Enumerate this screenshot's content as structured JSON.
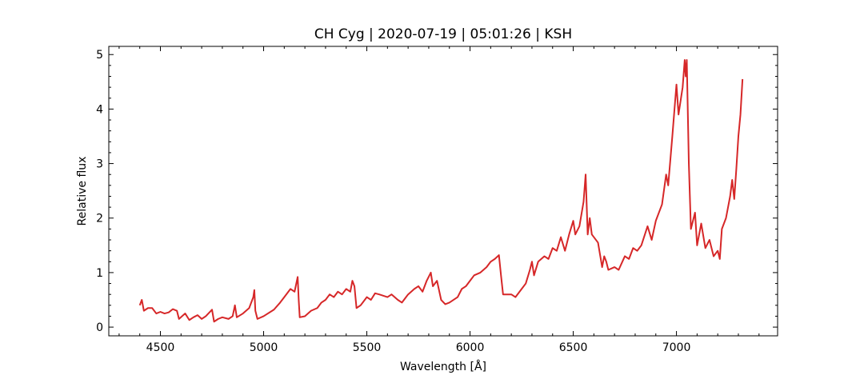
{
  "chart_data": {
    "type": "line",
    "title": "CH Cyg | 2020-07-19 | 05:01:26 | KSH",
    "x_label": "Wavelength [Å]",
    "y_label": "Relative flux",
    "xlim": [
      4250,
      7490
    ],
    "ylim": [
      -0.16,
      5.15
    ],
    "xticks": [
      4500,
      5000,
      5500,
      6000,
      6500,
      7000
    ],
    "yticks": [
      0,
      1,
      2,
      3,
      4,
      5
    ],
    "xminorticks": [
      4300,
      4400,
      4600,
      4700,
      4800,
      4900,
      5100,
      5200,
      5300,
      5400,
      5600,
      5700,
      5800,
      5900,
      6100,
      6200,
      6300,
      6400,
      6600,
      6700,
      6800,
      6900,
      7100,
      7200,
      7300,
      7400
    ],
    "yminorticks": [
      0.2,
      0.4,
      0.6,
      0.8,
      1.2,
      1.4,
      1.6,
      1.8,
      2.2,
      2.4,
      2.6,
      2.8,
      3.2,
      3.4,
      3.6,
      3.8,
      4.2,
      4.4,
      4.6,
      4.8
    ],
    "series": [
      {
        "color": "#d62728",
        "x": [
          4400,
          4410,
          4420,
          4440,
          4460,
          4480,
          4500,
          4520,
          4540,
          4560,
          4580,
          4590,
          4620,
          4640,
          4660,
          4680,
          4700,
          4720,
          4750,
          4760,
          4780,
          4800,
          4830,
          4850,
          4861,
          4870,
          4900,
          4930,
          4950,
          4955,
          4960,
          4970,
          5000,
          5050,
          5080,
          5100,
          5130,
          5150,
          5165,
          5170,
          5175,
          5200,
          5230,
          5260,
          5280,
          5300,
          5320,
          5340,
          5360,
          5380,
          5400,
          5420,
          5430,
          5440,
          5450,
          5470,
          5500,
          5520,
          5540,
          5560,
          5600,
          5620,
          5650,
          5670,
          5700,
          5730,
          5750,
          5770,
          5790,
          5810,
          5820,
          5840,
          5860,
          5880,
          5900,
          5940,
          5960,
          5980,
          6000,
          6020,
          6050,
          6080,
          6100,
          6120,
          6140,
          6150,
          6160,
          6200,
          6220,
          6250,
          6270,
          6290,
          6300,
          6310,
          6330,
          6360,
          6380,
          6400,
          6420,
          6440,
          6460,
          6480,
          6500,
          6510,
          6530,
          6550,
          6560,
          6570,
          6580,
          6590,
          6620,
          6640,
          6650,
          6660,
          6670,
          6700,
          6720,
          6750,
          6770,
          6790,
          6810,
          6830,
          6860,
          6880,
          6900,
          6930,
          6950,
          6960,
          6980,
          7000,
          7010,
          7030,
          7040,
          7045,
          7050,
          7060,
          7070,
          7090,
          7100,
          7120,
          7140,
          7160,
          7180,
          7200,
          7210,
          7220,
          7240,
          7260,
          7270,
          7280,
          7290,
          7300,
          7310,
          7320
        ],
        "values": [
          0.4,
          0.5,
          0.3,
          0.35,
          0.35,
          0.25,
          0.28,
          0.25,
          0.27,
          0.33,
          0.3,
          0.15,
          0.25,
          0.13,
          0.18,
          0.22,
          0.15,
          0.2,
          0.32,
          0.1,
          0.15,
          0.18,
          0.15,
          0.2,
          0.4,
          0.18,
          0.25,
          0.35,
          0.55,
          0.68,
          0.3,
          0.15,
          0.2,
          0.32,
          0.45,
          0.55,
          0.7,
          0.65,
          0.92,
          0.5,
          0.18,
          0.2,
          0.3,
          0.35,
          0.45,
          0.5,
          0.6,
          0.55,
          0.65,
          0.6,
          0.7,
          0.65,
          0.85,
          0.75,
          0.35,
          0.4,
          0.55,
          0.5,
          0.62,
          0.6,
          0.55,
          0.6,
          0.5,
          0.45,
          0.6,
          0.7,
          0.75,
          0.65,
          0.85,
          1.0,
          0.75,
          0.85,
          0.5,
          0.42,
          0.45,
          0.55,
          0.7,
          0.75,
          0.85,
          0.95,
          1.0,
          1.1,
          1.2,
          1.25,
          1.32,
          0.95,
          0.6,
          0.6,
          0.55,
          0.7,
          0.8,
          1.05,
          1.2,
          0.95,
          1.2,
          1.3,
          1.25,
          1.45,
          1.4,
          1.65,
          1.4,
          1.7,
          1.95,
          1.7,
          1.85,
          2.3,
          2.8,
          1.7,
          2.0,
          1.7,
          1.55,
          1.1,
          1.3,
          1.2,
          1.05,
          1.1,
          1.05,
          1.3,
          1.25,
          1.45,
          1.4,
          1.5,
          1.85,
          1.6,
          1.95,
          2.25,
          2.8,
          2.6,
          3.5,
          4.45,
          3.9,
          4.4,
          4.9,
          4.6,
          4.9,
          3.0,
          1.8,
          2.1,
          1.5,
          1.9,
          1.45,
          1.6,
          1.3,
          1.4,
          1.25,
          1.8,
          2.0,
          2.4,
          2.7,
          2.35,
          2.9,
          3.5,
          3.9,
          4.55
        ]
      }
    ]
  }
}
